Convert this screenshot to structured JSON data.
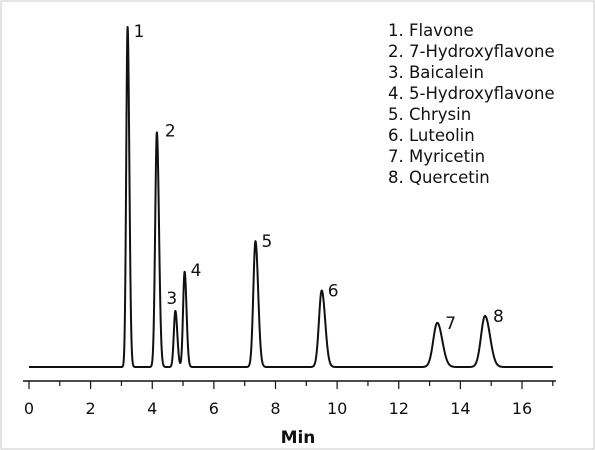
{
  "chart_data": {
    "type": "line",
    "xlabel": "Min",
    "ylabel": "",
    "xlim": [
      0,
      17
    ],
    "xticks": [
      0,
      2,
      4,
      6,
      8,
      10,
      12,
      14,
      16
    ],
    "tick_labels": [
      "0",
      "2",
      "4",
      "6",
      "8",
      "10",
      "12",
      "14",
      "16"
    ],
    "baseline": 0,
    "grid": false,
    "legend_placement": "top-right",
    "line_color": "#111111",
    "peaks": [
      {
        "label": "1",
        "name": "Flavone",
        "x": 3.2,
        "y": 1.0,
        "width": 0.045
      },
      {
        "label": "2",
        "name": "7-Hydroxyflavone",
        "x": 4.15,
        "y": 0.69,
        "width": 0.055
      },
      {
        "label": "3",
        "name": "Baicalein",
        "x": 4.75,
        "y": 0.165,
        "width": 0.05
      },
      {
        "label": "4",
        "name": "5-Hydroxyflavone",
        "x": 5.05,
        "y": 0.28,
        "width": 0.05
      },
      {
        "label": "5",
        "name": "Chrysin",
        "x": 7.35,
        "y": 0.37,
        "width": 0.07
      },
      {
        "label": "6",
        "name": "Luteolin",
        "x": 9.5,
        "y": 0.225,
        "width": 0.09
      },
      {
        "label": "7",
        "name": "Myricetin",
        "x": 13.25,
        "y": 0.13,
        "width": 0.13
      },
      {
        "label": "8",
        "name": "Quercetin",
        "x": 14.8,
        "y": 0.15,
        "width": 0.13
      }
    ]
  },
  "legend": [
    "1. Flavone",
    "2. 7-Hydroxyflavone",
    "3. Baicalein",
    "4. 5-Hydroxyflavone",
    "5. Chrysin",
    "6. Luteolin",
    "7. Myricetin",
    "8. Quercetin"
  ]
}
